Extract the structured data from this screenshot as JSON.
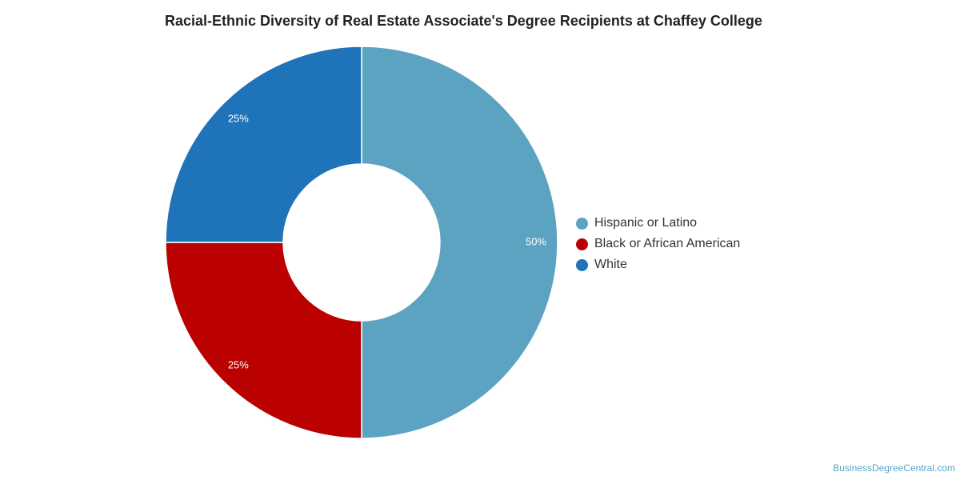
{
  "chart_data": {
    "type": "pie",
    "variant": "donut",
    "title": "Racial-Ethnic Diversity of Real Estate Associate's Degree Recipients at Chaffey College",
    "categories": [
      "Hispanic or Latino",
      "Black or African American",
      "White"
    ],
    "values": [
      50,
      25,
      25
    ],
    "labels": [
      "50%",
      "25%",
      "25%"
    ],
    "colors": [
      "#5ba3c0",
      "#bb0000",
      "#1f73b8"
    ],
    "legend_position": "right"
  },
  "watermark": "BusinessDegreeCentral.com"
}
